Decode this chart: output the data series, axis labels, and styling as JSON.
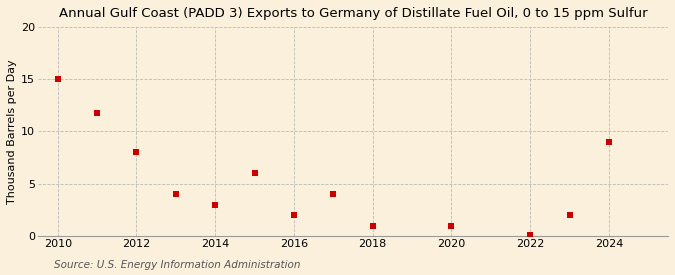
{
  "title": "Annual Gulf Coast (PADD 3) Exports to Germany of Distillate Fuel Oil, 0 to 15 ppm Sulfur",
  "ylabel": "Thousand Barrels per Day",
  "source": "Source: U.S. Energy Information Administration",
  "x": [
    2010,
    2011,
    2012,
    2013,
    2014,
    2015,
    2016,
    2017,
    2018,
    2020,
    2022,
    2023,
    2024
  ],
  "y": [
    15.0,
    11.8,
    8.0,
    4.0,
    3.0,
    6.0,
    2.0,
    4.0,
    1.0,
    1.0,
    0.1,
    2.0,
    9.0
  ],
  "marker_color": "#CC0000",
  "marker": "s",
  "marker_size": 4,
  "xlim": [
    2009.5,
    2025.5
  ],
  "ylim": [
    0,
    20
  ],
  "yticks": [
    0,
    5,
    10,
    15,
    20
  ],
  "xticks": [
    2010,
    2012,
    2014,
    2016,
    2018,
    2020,
    2022,
    2024
  ],
  "bg_color": "#FAF0DC",
  "plot_bg_color": "#FAF0DC",
  "grid_color": "#BBBBBB",
  "title_fontsize": 9.5,
  "label_fontsize": 8.0,
  "tick_fontsize": 8.0,
  "source_fontsize": 7.5
}
